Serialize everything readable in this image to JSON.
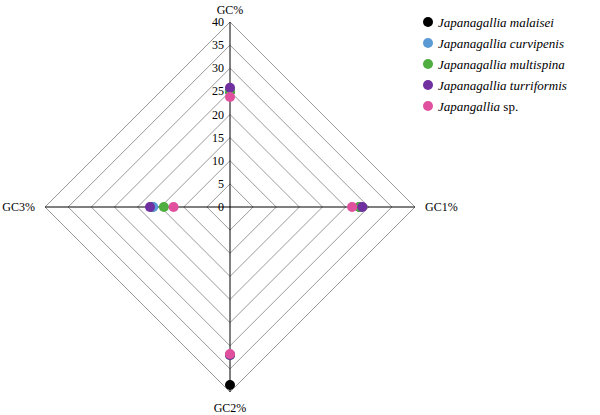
{
  "chart_data": {
    "type": "radar",
    "categories": [
      "GC%",
      "GC1%",
      "GC2%",
      "GC3%"
    ],
    "series": [
      {
        "name": "Japanagallia malaisei",
        "color": "#000000",
        "values": [
          25,
          28,
          38.5,
          16.8
        ]
      },
      {
        "name": "Japanagallia curvipenis",
        "color": "#5b9bd5",
        "values": [
          25.2,
          28.2,
          32,
          16.6
        ]
      },
      {
        "name": "Japanagallia multispina",
        "color": "#4fae3f",
        "values": [
          25,
          28,
          32,
          14.3
        ]
      },
      {
        "name": "Japanagallia turriformis",
        "color": "#7030a0",
        "values": [
          25.8,
          28.6,
          32,
          17.3
        ]
      },
      {
        "name": "Japangallia sp.",
        "color": "#e0509f",
        "values": [
          23.8,
          26.4,
          31.8,
          12.2
        ]
      }
    ],
    "ylim": [
      0,
      40
    ],
    "yticks": [
      0,
      5,
      10,
      15,
      20,
      25,
      30,
      35,
      40
    ],
    "grid": true,
    "marker": "circle",
    "legend": "top-right"
  }
}
